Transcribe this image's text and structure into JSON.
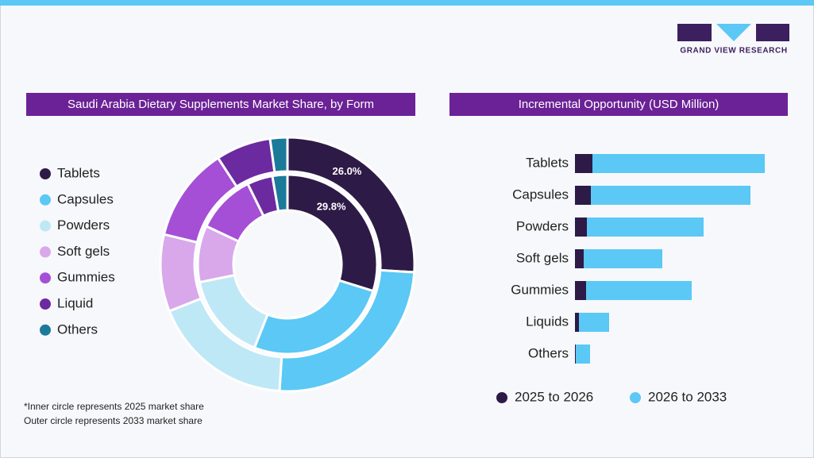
{
  "brand": {
    "name": "GRAND VIEW RESEARCH"
  },
  "chart_data": [
    {
      "type": "donut",
      "title": "Saudi Arabia Dietary Supplements Market Share, by Form",
      "categories": [
        "Tablets",
        "Capsules",
        "Powders",
        "Soft gels",
        "Gummies",
        "Liquid",
        "Others"
      ],
      "colors": [
        "#2e1a47",
        "#5bc8f5",
        "#bfe8f7",
        "#d8a8eb",
        "#a44fd6",
        "#6c2aa0",
        "#1b7a9a"
      ],
      "series": [
        {
          "ring": "outer",
          "values": [
            26.0,
            25.0,
            18.0,
            9.8,
            12.0,
            7.0,
            2.2
          ],
          "value_labels": [
            "26.0%",
            null,
            null,
            null,
            null,
            null,
            null
          ]
        },
        {
          "ring": "inner",
          "values": [
            29.8,
            26.2,
            15.8,
            10.2,
            10.7,
            4.6,
            2.7
          ],
          "value_labels": [
            "29.8%",
            null,
            null,
            null,
            null,
            null,
            null
          ]
        }
      ],
      "notes": [
        "*Inner circle represents 2025 market share",
        "Outer circle represents 2033 market share"
      ]
    },
    {
      "type": "stacked-barh",
      "title": "Incremental Opportunity (USD Million)",
      "categories": [
        "Tablets",
        "Capsules",
        "Powders",
        "Soft gels",
        "Gummies",
        "Liquids",
        "Others"
      ],
      "series": [
        {
          "name": "2025 to 2026",
          "color": "#2e1a47",
          "values": [
            22,
            20,
            15,
            11,
            14,
            5,
            1
          ]
        },
        {
          "name": "2026 to 2033",
          "color": "#5bc8f5",
          "values": [
            217,
            201,
            147,
            99,
            133,
            38,
            18
          ]
        }
      ],
      "xlim": [
        0,
        260
      ]
    }
  ]
}
